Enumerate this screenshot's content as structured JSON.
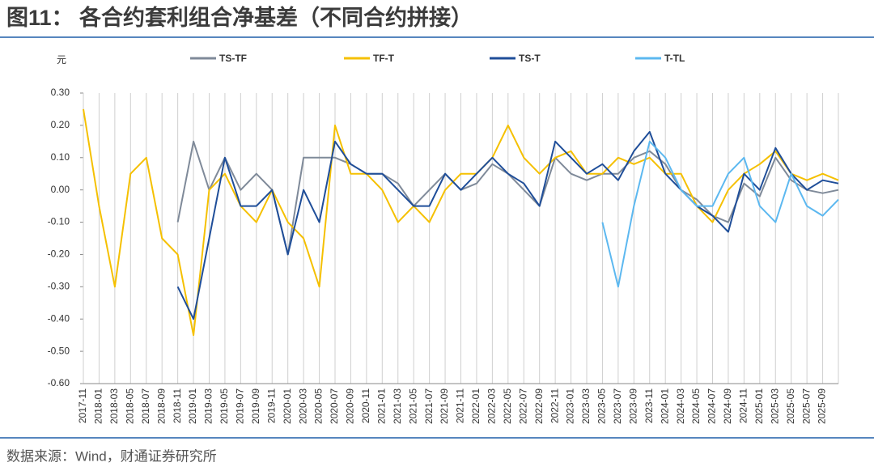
{
  "chart_data": {
    "type": "line",
    "title": "图11：  各合约套利组合净基差（不同合约拼接）",
    "y_label": "元",
    "source": "数据来源：Wind，财通证券研究所",
    "legend": "top",
    "grid": true,
    "categories": [
      "2017-11",
      "2018-01",
      "2018-03",
      "2018-05",
      "2018-07",
      "2018-09",
      "2018-11",
      "2019-01",
      "2019-03",
      "2019-05",
      "2019-07",
      "2019-09",
      "2019-11",
      "2020-01",
      "2020-03",
      "2020-05",
      "2020-07",
      "2020-09",
      "2020-11",
      "2021-01",
      "2021-03",
      "2021-05",
      "2021-07",
      "2021-09",
      "2021-11",
      "2022-01",
      "2022-03",
      "2022-05",
      "2022-07",
      "2022-09",
      "2022-11",
      "2023-01",
      "2023-03",
      "2023-05",
      "2023-07",
      "2023-09",
      "2023-11",
      "2024-01",
      "2024-03",
      "2024-05",
      "2024-07",
      "2024-09",
      "2024-11",
      "2025-01",
      "2025-03",
      "2025-05",
      "2025-07",
      "2025-09",
      null
    ],
    "series": [
      {
        "name": "TS-TF",
        "color": "#7f8a99",
        "values": [
          null,
          null,
          null,
          null,
          null,
          null,
          -0.1,
          0.15,
          0.0,
          0.1,
          0.0,
          0.05,
          0.0,
          -0.2,
          0.1,
          0.1,
          0.1,
          0.08,
          0.05,
          0.05,
          0.02,
          -0.05,
          0.0,
          0.05,
          0.0,
          0.02,
          0.08,
          0.05,
          0.0,
          -0.05,
          0.1,
          0.05,
          0.03,
          0.05,
          0.05,
          0.1,
          0.12,
          0.08,
          0.0,
          -0.03,
          -0.08,
          -0.1,
          0.02,
          -0.02,
          0.1,
          0.03,
          0.0,
          -0.01,
          0.0
        ]
      },
      {
        "name": "TF-T",
        "color": "#f5c000",
        "values": [
          0.25,
          -0.05,
          -0.3,
          0.05,
          0.1,
          -0.15,
          -0.2,
          -0.45,
          0.0,
          0.05,
          -0.05,
          -0.1,
          0.0,
          -0.1,
          -0.15,
          -0.3,
          0.2,
          0.05,
          0.05,
          0.0,
          -0.1,
          -0.05,
          -0.1,
          0.0,
          0.05,
          0.05,
          0.1,
          0.2,
          0.1,
          0.05,
          0.1,
          0.12,
          0.05,
          0.05,
          0.1,
          0.08,
          0.1,
          0.05,
          0.05,
          -0.05,
          -0.1,
          0.0,
          0.05,
          0.08,
          0.12,
          0.05,
          0.03,
          0.05,
          0.03
        ]
      },
      {
        "name": "TS-T",
        "color": "#1f4e99",
        "values": [
          null,
          null,
          null,
          null,
          null,
          null,
          -0.3,
          -0.4,
          -0.15,
          0.1,
          -0.05,
          -0.05,
          0.0,
          -0.2,
          0.0,
          -0.1,
          0.15,
          0.08,
          0.05,
          0.05,
          0.0,
          -0.05,
          -0.05,
          0.05,
          0.0,
          0.05,
          0.1,
          0.05,
          0.02,
          -0.05,
          0.15,
          0.1,
          0.05,
          0.08,
          0.03,
          0.12,
          0.18,
          0.05,
          0.0,
          -0.05,
          -0.08,
          -0.13,
          0.05,
          0.0,
          0.13,
          0.05,
          0.0,
          0.03,
          0.02
        ]
      },
      {
        "name": "T-TL",
        "color": "#5cb8f0",
        "values": [
          null,
          null,
          null,
          null,
          null,
          null,
          null,
          null,
          null,
          null,
          null,
          null,
          null,
          null,
          null,
          null,
          null,
          null,
          null,
          null,
          null,
          null,
          null,
          null,
          null,
          null,
          null,
          null,
          null,
          null,
          null,
          null,
          null,
          -0.1,
          -0.3,
          -0.05,
          0.15,
          0.1,
          0.0,
          -0.05,
          -0.05,
          0.05,
          0.1,
          -0.05,
          -0.1,
          0.05,
          -0.05,
          -0.08,
          -0.03
        ]
      }
    ],
    "ylim": [
      -0.6,
      0.3
    ],
    "yticks": [
      {
        "value": 0.3,
        "label": "0.30"
      },
      {
        "value": 0.2,
        "label": "0.20"
      },
      {
        "value": 0.1,
        "label": "0.10"
      },
      {
        "value": 0.0,
        "label": "0.00"
      },
      {
        "value": -0.1,
        "label": "-0.10"
      },
      {
        "value": -0.2,
        "label": "-0.20"
      },
      {
        "value": -0.3,
        "label": "-0.30"
      },
      {
        "value": -0.4,
        "label": "-0.40"
      },
      {
        "value": -0.5,
        "label": "-0.50"
      },
      {
        "value": -0.6,
        "label": "-0.60"
      }
    ]
  }
}
